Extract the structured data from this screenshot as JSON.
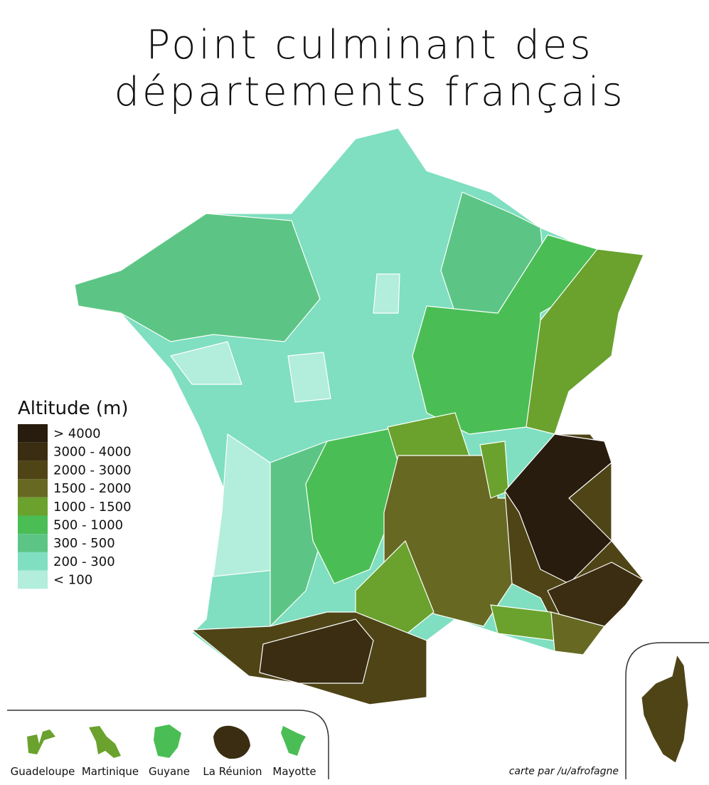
{
  "title_lines": [
    "Point culminant des",
    "départements français"
  ],
  "legend": {
    "title": "Altitude (m)",
    "items": [
      {
        "label": "> 4000",
        "color": "#271c0d"
      },
      {
        "label": "3000 - 4000",
        "color": "#3a2d11"
      },
      {
        "label": "2000 - 3000",
        "color": "#4e4416"
      },
      {
        "label": "1500 - 2000",
        "color": "#676923"
      },
      {
        "label": "1000 - 1500",
        "color": "#6aa22d"
      },
      {
        "label": "500 - 1000",
        "color": "#4abe55"
      },
      {
        "label": "300 - 500",
        "color": "#5cc585"
      },
      {
        "label": "200 - 300",
        "color": "#7fdfc0"
      },
      {
        "label": "< 100",
        "color": "#b3eddb"
      }
    ]
  },
  "overseas": [
    {
      "name": "Guadeloupe",
      "color": "#6aa22d"
    },
    {
      "name": "Martinique",
      "color": "#6aa22d"
    },
    {
      "name": "Guyane",
      "color": "#4abe55"
    },
    {
      "name": "La Réunion",
      "color": "#3a2d11"
    },
    {
      "name": "Mayotte",
      "color": "#4abe55"
    }
  ],
  "credit": "carte par /u/afrofagne"
}
